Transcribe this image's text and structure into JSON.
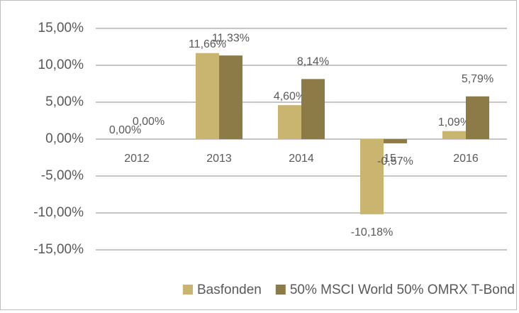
{
  "chart_data": {
    "type": "bar",
    "categories": [
      "2012",
      "2013",
      "2014",
      "2015",
      "2016"
    ],
    "series": [
      {
        "name": "Basfonden",
        "color": "#c9b56f",
        "values": [
          0,
          11.66,
          4.6,
          -10.18,
          1.09
        ],
        "value_labels": [
          "0,00%",
          "11,66%",
          "4,60%",
          "-10,18%",
          "1,09%"
        ]
      },
      {
        "name": "50% MSCI World 50% OMRX T-Bond",
        "color": "#8c7b46",
        "values": [
          0,
          11.33,
          8.14,
          -0.57,
          5.79
        ],
        "value_labels": [
          "0,00%",
          "11,33%",
          "8,14%",
          "-0,57%",
          "5,79%"
        ]
      }
    ],
    "ylim": [
      -15,
      15
    ],
    "yticks": [
      {
        "value": -15,
        "label": "-15,00%"
      },
      {
        "value": -10,
        "label": "-10,00%"
      },
      {
        "value": -5,
        "label": "-5,00%"
      },
      {
        "value": 0,
        "label": "0,00%"
      },
      {
        "value": 5,
        "label": "5,00%"
      },
      {
        "value": 10,
        "label": "10,00%"
      },
      {
        "value": 15,
        "label": "15,00%"
      }
    ],
    "grid": true,
    "legend": "bottom"
  }
}
